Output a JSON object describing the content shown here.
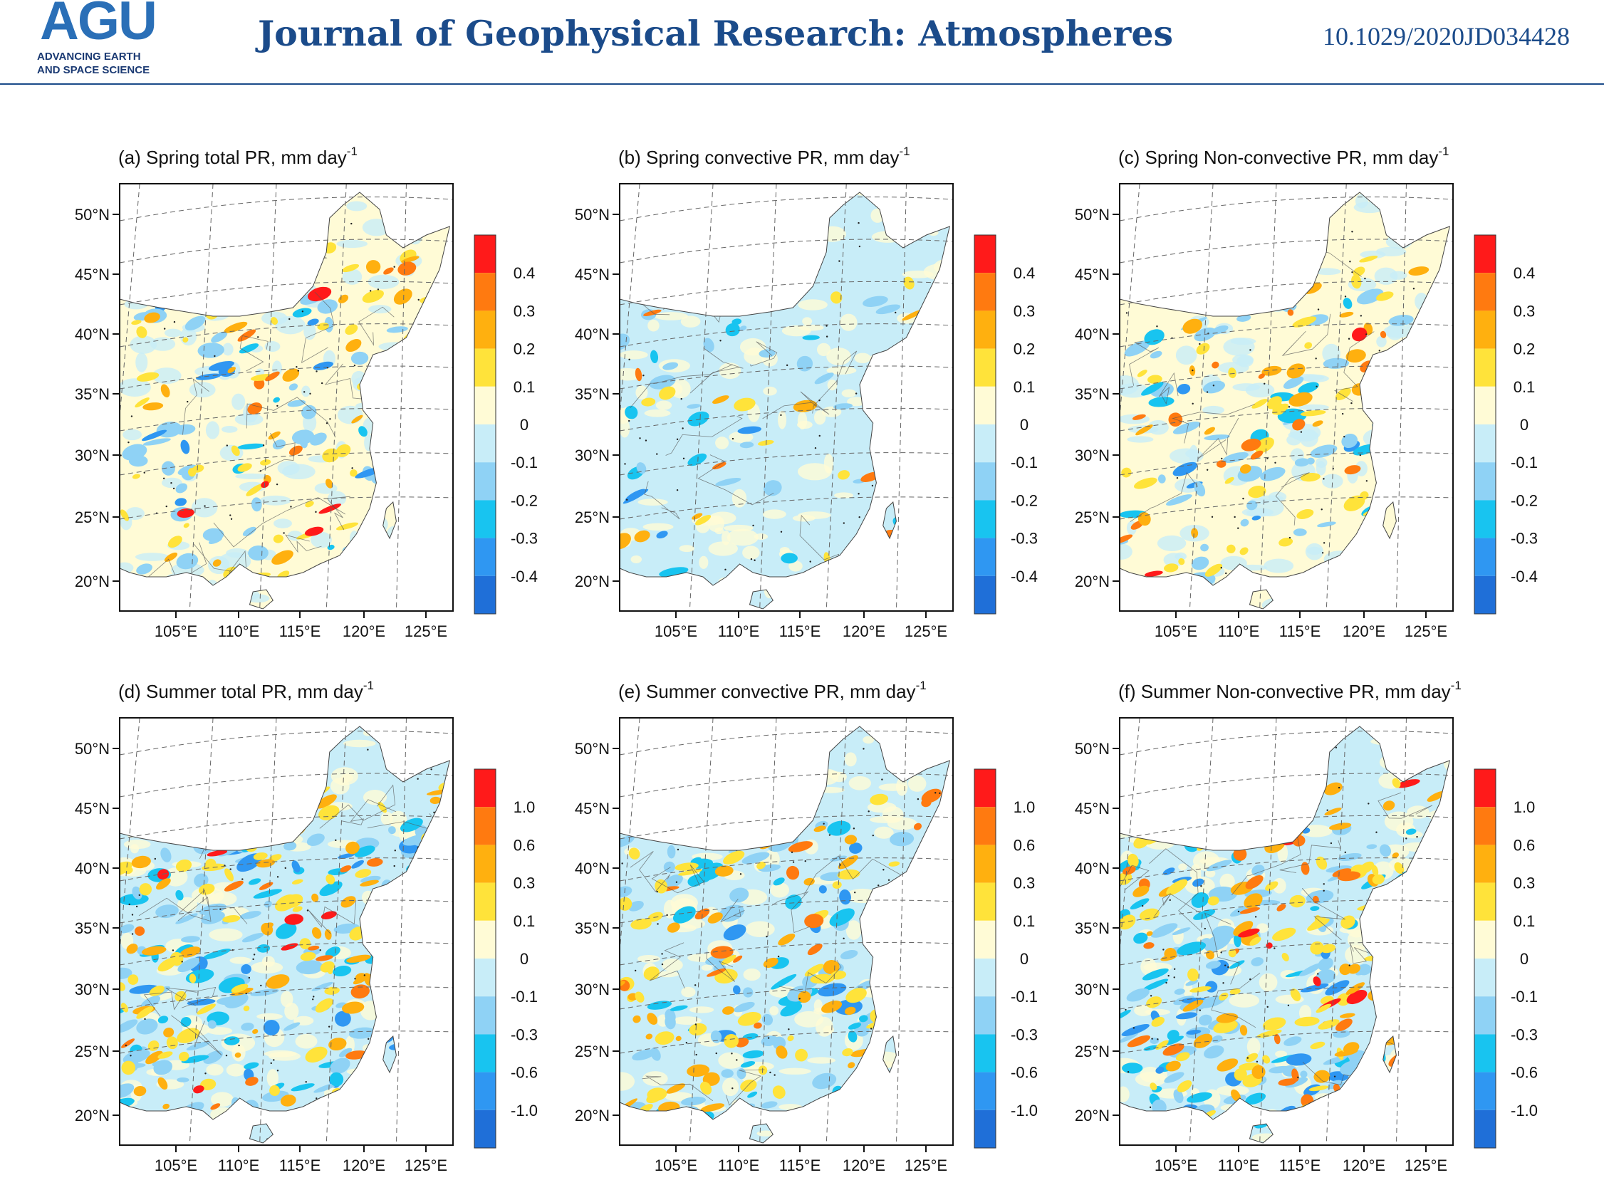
{
  "header": {
    "logo_text": "AGU",
    "logo_subtitle": "ADVANCING EARTH\nAND SPACE SCIENCE",
    "journal_title": "Journal of Geophysical Research: Atmospheres",
    "doi": "10.1029/2020JD034428"
  },
  "colors": {
    "journal_blue": "#1b4b8a",
    "logo_blue": "#2a6fb7",
    "colorbar": [
      "#1f6fd8",
      "#2f97f2",
      "#18c4f0",
      "#8fd2f5",
      "#c8edf8",
      "#fffbd6",
      "#ffe33a",
      "#ffb00f",
      "#ff7a10",
      "#ff1a1a"
    ]
  },
  "map": {
    "lat_labels": [
      "50°N",
      "45°N",
      "40°N",
      "35°N",
      "30°N",
      "25°N",
      "20°N"
    ],
    "lon_labels": [
      "105°E",
      "110°E",
      "115°E",
      "120°E",
      "125°E"
    ]
  },
  "panels": [
    {
      "title": "(a) Spring total PR, mm day",
      "superscript": "-1",
      "colorbar_labels": [
        "0.4",
        "0.3",
        "0.2",
        "0.1",
        "0",
        "-0.1",
        "-0.2",
        "-0.3",
        "-0.4"
      ]
    },
    {
      "title": "(b) Spring convective PR, mm day",
      "superscript": "-1",
      "colorbar_labels": [
        "0.4",
        "0.3",
        "0.2",
        "0.1",
        "0",
        "-0.1",
        "-0.2",
        "-0.3",
        "-0.4"
      ]
    },
    {
      "title": "(c) Spring Non-convective PR, mm day",
      "superscript": "-1",
      "colorbar_labels": [
        "0.4",
        "0.3",
        "0.2",
        "0.1",
        "0",
        "-0.1",
        "-0.2",
        "-0.3",
        "-0.4"
      ]
    },
    {
      "title": "(d) Summer total PR, mm day",
      "superscript": "-1",
      "colorbar_labels": [
        "1.0",
        "0.6",
        "0.3",
        "0.1",
        "0",
        "-0.1",
        "-0.3",
        "-0.6",
        "-1.0"
      ]
    },
    {
      "title": "(e) Summer convective PR, mm day",
      "superscript": "-1",
      "colorbar_labels": [
        "1.0",
        "0.6",
        "0.3",
        "0.1",
        "0",
        "-0.1",
        "-0.3",
        "-0.6",
        "-1.0"
      ]
    },
    {
      "title": "(f) Summer Non-convective PR, mm day",
      "superscript": "-1",
      "colorbar_labels": [
        "1.0",
        "0.6",
        "0.3",
        "0.1",
        "0",
        "-0.1",
        "-0.3",
        "-0.6",
        "-1.0"
      ]
    }
  ]
}
